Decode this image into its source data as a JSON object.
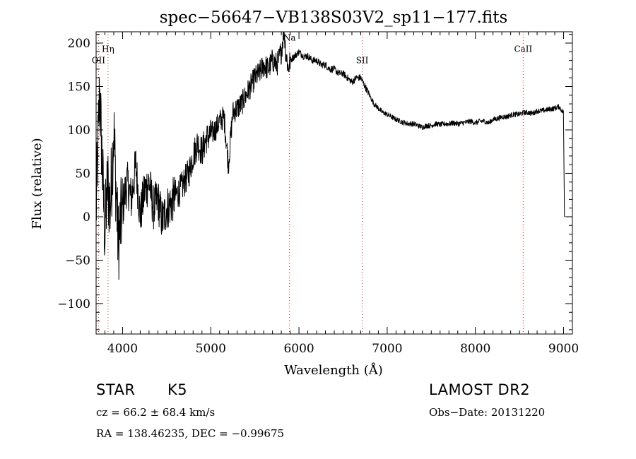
{
  "chart_data": {
    "type": "line",
    "title": "spec−56647−VB138S03V2_sp11−177.fits",
    "xlabel": "Wavelength (Å)",
    "ylabel": "Flux (relative)",
    "xlim": [
      3700,
      9100
    ],
    "ylim": [
      -135,
      213
    ],
    "x_ticks": [
      4000,
      5000,
      6000,
      7000,
      8000,
      9000
    ],
    "x_tick_labels": [
      "4000",
      "5000",
      "6000",
      "7000",
      "8000",
      "9000"
    ],
    "y_ticks": [
      -100,
      -50,
      0,
      50,
      100,
      150,
      200
    ],
    "y_tick_labels": [
      "−100",
      "−50",
      "0",
      "50",
      "100",
      "150",
      "200"
    ],
    "line_color": "#000000",
    "marker_color": "#cc2222",
    "series": [
      {
        "x": [
          3700,
          3740,
          3780,
          3800,
          3830,
          3860,
          3900,
          3950,
          4000,
          4050,
          4100,
          4150,
          4200,
          4250,
          4300,
          4350,
          4400,
          4450,
          4500,
          4550,
          4600,
          4650,
          4700,
          4750,
          4800,
          4850,
          4900,
          4950,
          5000,
          5050,
          5100,
          5150,
          5200,
          5250,
          5300,
          5350,
          5400,
          5450,
          5500,
          5550,
          5600,
          5650,
          5700,
          5750,
          5800,
          5830,
          5850,
          5880,
          5900,
          5950,
          6000,
          6050,
          6100,
          6150,
          6200,
          6250,
          6300,
          6350,
          6400,
          6450,
          6500,
          6550,
          6600,
          6650,
          6700,
          6750,
          6800,
          6850,
          6900,
          6950,
          7000,
          7050,
          7100,
          7150,
          7200,
          7250,
          7300,
          7350,
          7400,
          7450,
          7500,
          7550,
          7600,
          7650,
          7700,
          7750,
          7800,
          7850,
          7900,
          7950,
          8000,
          8050,
          8100,
          8150,
          8200,
          8250,
          8300,
          8350,
          8400,
          8450,
          8500,
          8550,
          8600,
          8650,
          8700,
          8750,
          8800,
          8850,
          8900,
          8950,
          8980,
          9000,
          9010
        ],
        "y": [
          5,
          145,
          30,
          -20,
          40,
          10,
          100,
          -30,
          10,
          40,
          20,
          60,
          0,
          30,
          40,
          10,
          20,
          -5,
          10,
          15,
          25,
          30,
          40,
          50,
          70,
          85,
          75,
          90,
          95,
          100,
          110,
          115,
          60,
          120,
          125,
          130,
          140,
          150,
          160,
          165,
          175,
          170,
          180,
          175,
          190,
          215,
          190,
          170,
          180,
          185,
          190,
          185,
          185,
          180,
          180,
          175,
          175,
          170,
          170,
          165,
          165,
          160,
          155,
          160,
          160,
          150,
          140,
          130,
          125,
          120,
          118,
          115,
          112,
          110,
          108,
          107,
          107,
          105,
          103,
          105,
          105,
          107,
          106,
          107,
          107,
          108,
          107,
          108,
          109,
          110,
          108,
          110,
          110,
          108,
          112,
          113,
          115,
          115,
          117,
          118,
          118,
          120,
          120,
          119,
          122,
          122,
          123,
          124,
          125,
          127,
          122,
          120,
          0
        ]
      }
    ],
    "noise": [
      {
        "from": 3700,
        "to": 4000,
        "amp": 50
      },
      {
        "from": 4000,
        "to": 4600,
        "amp": 26
      },
      {
        "from": 4600,
        "to": 5000,
        "amp": 18
      },
      {
        "from": 5000,
        "to": 5900,
        "amp": 14
      },
      {
        "from": 5900,
        "to": 6800,
        "amp": 4
      },
      {
        "from": 6800,
        "to": 9000,
        "amp": 3
      }
    ],
    "lines": [
      {
        "label": "OII",
        "wavelength": 3727,
        "label_level": 177
      },
      {
        "label": "Hη",
        "wavelength": 3835,
        "label_level": 190
      },
      {
        "label": "Na",
        "wavelength": 5893,
        "label_level": 203
      },
      {
        "label": "SII",
        "wavelength": 6717,
        "label_level": 177
      },
      {
        "label": "CaII",
        "wavelength": 8542,
        "label_level": 190
      }
    ]
  },
  "info": {
    "class_label": "STAR",
    "subclass_label": "K5",
    "survey": "LAMOST DR2",
    "redshift_text": "cz = 66.2 ± 68.4 km/s",
    "obs_date": "Obs−Date: 20131220",
    "coords": "RA = 138.46235, DEC =  −0.99675"
  }
}
